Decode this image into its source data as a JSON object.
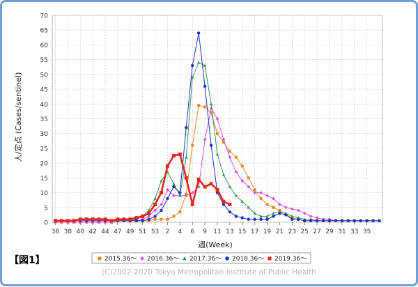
{
  "figure_label": "【図1】",
  "copyright": "(C)2002-2020 Tokyo Metropolitan Institute of Public Health",
  "chart_data": {
    "type": "line",
    "title": "",
    "xlabel": "週(Week)",
    "ylabel": "人/定点 (Cases/sentinel)",
    "ylim": [
      0,
      70
    ],
    "yticks": [
      0,
      5,
      10,
      15,
      20,
      25,
      30,
      35,
      40,
      45,
      50,
      55,
      60,
      65,
      70
    ],
    "x_tick_labels": [
      "36",
      "38",
      "40",
      "42",
      "44",
      "47",
      "49",
      "51",
      "53",
      "2",
      "4",
      "6",
      "9",
      "11",
      "13",
      "15",
      "17",
      "19",
      "21",
      "23",
      "25",
      "27",
      "29",
      "31",
      "33",
      "35"
    ],
    "x_tick_index_step": 2,
    "grid": true,
    "legend_position": "bottom",
    "series": [
      {
        "name": "2015.36～",
        "color": "#e8882a",
        "marker": "square",
        "values": [
          0,
          0,
          0,
          0,
          0,
          0,
          0,
          0,
          0,
          0,
          0.5,
          0.5,
          0.5,
          0.5,
          0.5,
          0.5,
          1,
          1,
          1,
          2,
          3.5,
          9.5,
          26,
          39.5,
          39,
          37,
          30,
          27,
          24,
          22,
          19,
          15,
          11,
          8,
          6,
          5,
          4,
          2.5,
          1.5,
          1,
          0.5,
          0.5,
          0.5,
          0.5,
          0.5,
          0.5,
          0.5,
          0.5,
          0.5,
          0.5,
          0.5,
          0.5,
          0.5
        ]
      },
      {
        "name": "2016.36～",
        "color": "#d94fe0",
        "marker": "diamond",
        "values": [
          0,
          0,
          0,
          0,
          0,
          0,
          0,
          0,
          0,
          0,
          0.5,
          0.5,
          0.5,
          0.5,
          1,
          2,
          4,
          6,
          11,
          9,
          9,
          9,
          10,
          12,
          28,
          38.5,
          35,
          28,
          22,
          17,
          14,
          12,
          10,
          10,
          9,
          8,
          6,
          5,
          4.5,
          4,
          3,
          2,
          1.5,
          1,
          1,
          0.5,
          0.5,
          0.5,
          0.5,
          0.5,
          0.5,
          0.5,
          0.5
        ]
      },
      {
        "name": "2017.36～",
        "color": "#2e9a4f",
        "marker": "triangle",
        "values": [
          0.5,
          0.5,
          0.5,
          0.5,
          0.5,
          0.5,
          0.5,
          0.5,
          0.5,
          0.5,
          0.5,
          0.5,
          0.5,
          1,
          2,
          4,
          8,
          14,
          17,
          13,
          9,
          22,
          49,
          54,
          53,
          40,
          23,
          16,
          12,
          9,
          7,
          5,
          3,
          2,
          2,
          3,
          3.5,
          3,
          2,
          1.5,
          1,
          1,
          0.5,
          0.5,
          0.5,
          0.5,
          0.5,
          0.5,
          0.5,
          0.5,
          0.5,
          0.5,
          0.5
        ]
      },
      {
        "name": "2018.36～",
        "color": "#1c2fc4",
        "marker": "circle",
        "values": [
          0.5,
          0.5,
          0.5,
          0.5,
          0.5,
          0.5,
          0.5,
          0.5,
          0.5,
          0.5,
          0.5,
          0.5,
          0.5,
          0.5,
          0.5,
          1,
          2,
          4,
          8,
          12,
          10,
          32,
          53,
          64,
          46,
          26,
          10,
          6,
          3.5,
          2,
          1.5,
          1,
          1,
          1,
          1,
          2,
          3,
          2.5,
          1,
          1,
          0.5,
          0.5,
          0.5,
          0.5,
          0.5,
          0.5,
          0.5,
          0.5,
          0.5,
          0.5,
          0.5,
          0.5,
          0.5
        ]
      },
      {
        "name": "2019.36～",
        "color": "#e52619",
        "marker": "square",
        "values": [
          0.5,
          0.5,
          0.5,
          0.5,
          1,
          1,
          1,
          1,
          1,
          0.5,
          1,
          1,
          1,
          1.5,
          2,
          3,
          6,
          10,
          19,
          22.5,
          23,
          15,
          6,
          14.5,
          12,
          13,
          11,
          7,
          6
        ]
      }
    ]
  }
}
